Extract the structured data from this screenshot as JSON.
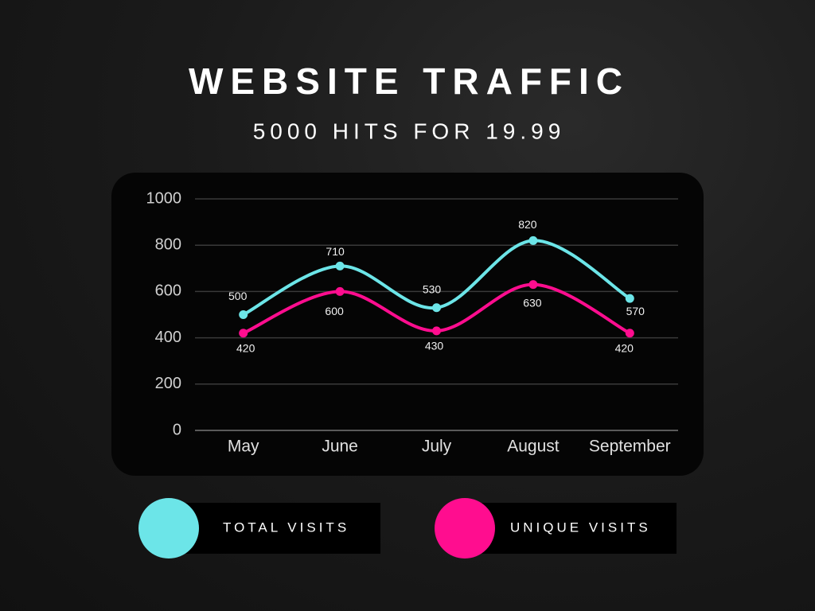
{
  "chart_data": {
    "type": "line",
    "title": "WEBSITE TRAFFIC",
    "subtitle": "5000 HITS FOR 19.99",
    "categories": [
      "May",
      "June",
      "July",
      "August",
      "September"
    ],
    "series": [
      {
        "name": "TOTAL VISITS",
        "color": "#6ce5e8",
        "values": [
          500,
          710,
          530,
          820,
          570
        ]
      },
      {
        "name": "UNIQUE VISITS",
        "color": "#ff0d8f",
        "values": [
          420,
          600,
          430,
          630,
          420
        ]
      }
    ],
    "ylim": [
      0,
      1000
    ],
    "yticks": [
      0,
      200,
      400,
      600,
      800,
      1000
    ],
    "grid": true
  }
}
